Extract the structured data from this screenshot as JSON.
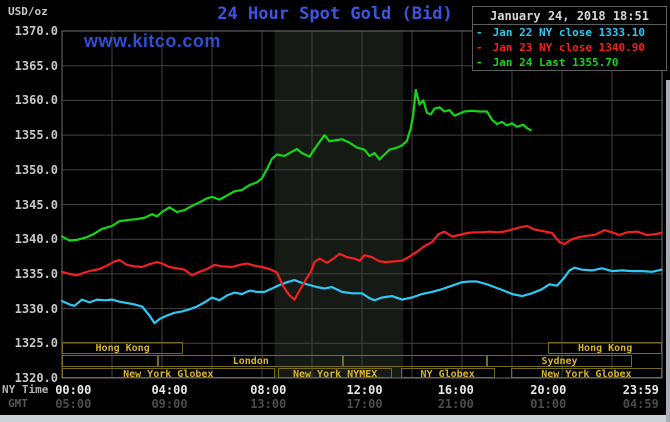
{
  "header": {
    "unit_label": "USD/oz",
    "title": "24 Hour Spot Gold (Bid)",
    "datetime": "January 24, 2018 18:51",
    "watermark": "www.kitco.com"
  },
  "legend": {
    "dash_glyph": "-",
    "items": [
      {
        "label": " Jan 22 NY close 1333.10",
        "color": "#2fc8f5"
      },
      {
        "label": " Jan 23 NY close 1340.90",
        "color": "#f22020"
      },
      {
        "label": " Jan 24 Last 1355.70",
        "color": "#17d417"
      }
    ]
  },
  "axes": {
    "ny_time_label": "NY Time",
    "gmt_label": "GMT",
    "y_tick_labels": [
      "1370.0",
      "1365.0",
      "1360.0",
      "1355.0",
      "1350.0",
      "1345.0",
      "1340.0",
      "1335.0",
      "1330.0",
      "1325.0",
      "1320.0"
    ],
    "x_ticks": [
      {
        "ny": "00:00",
        "gmt": "05:00",
        "hour": 0.45
      },
      {
        "ny": "04:00",
        "gmt": "09:00",
        "hour": 4.3
      },
      {
        "ny": "08:00",
        "gmt": "13:00",
        "hour": 8.25
      },
      {
        "ny": "12:00",
        "gmt": "17:00",
        "hour": 12.1
      },
      {
        "ny": "16:00",
        "gmt": "21:00",
        "hour": 15.75
      },
      {
        "ny": "20:00",
        "gmt": "01:00",
        "hour": 19.45
      },
      {
        "ny": "23:59",
        "gmt": "04:59",
        "hour": 23.15
      }
    ]
  },
  "sessions": {
    "border_color": "#756a1e",
    "text_color": "#d8b42c",
    "rows": [
      {
        "boxes": [
          {
            "label": "Hong Kong",
            "from": 0,
            "to": 4.85
          },
          {
            "label": "Hong Kong",
            "from": 19.45,
            "to": 24
          }
        ]
      },
      {
        "boxes": [
          {
            "label": "",
            "from": 0,
            "to": 3.85
          },
          {
            "label": "London",
            "from": 3.85,
            "to": 11.25
          },
          {
            "label": "",
            "from": 11.25,
            "to": 17.0
          },
          {
            "label": "Sydney",
            "from": 17.0,
            "to": 22.8
          }
        ]
      },
      {
        "boxes": [
          {
            "label": "New York Globex",
            "from": 0,
            "to": 8.5
          },
          {
            "label": "New York NYMEX",
            "from": 8.65,
            "to": 13.2
          },
          {
            "label": "NY Globex",
            "from": 13.55,
            "to": 17.3
          },
          {
            "label": "New York Globex",
            "from": 17.95,
            "to": 24
          }
        ]
      }
    ]
  },
  "chart_data": {
    "type": "line",
    "title": "24 Hour Spot Gold (Bid)",
    "xlabel": "NY Time (hours 00:00-23:59)",
    "ylabel": "USD/oz",
    "xlim": [
      0,
      24
    ],
    "ylim": [
      1320,
      1370
    ],
    "y_tick_step": 5,
    "x_gridline_step_hours": 2,
    "grid": true,
    "legend_position": "top-right",
    "nymex_highlight_band_hours": [
      8.5,
      13.65
    ],
    "highlight_band_color": "#151b14",
    "series": [
      {
        "name": "Jan 22",
        "close_label": "NY close 1333.10",
        "close_value": 1333.1,
        "color": "#2fc8f5",
        "points": [
          [
            0,
            1331.1
          ],
          [
            0.3,
            1330.6
          ],
          [
            0.5,
            1330.4
          ],
          [
            0.8,
            1331.3
          ],
          [
            1.1,
            1330.9
          ],
          [
            1.4,
            1331.3
          ],
          [
            1.7,
            1331.2
          ],
          [
            2.0,
            1331.3
          ],
          [
            2.3,
            1331.0
          ],
          [
            2.6,
            1330.8
          ],
          [
            2.9,
            1330.6
          ],
          [
            3.2,
            1330.3
          ],
          [
            3.5,
            1329.0
          ],
          [
            3.7,
            1327.9
          ],
          [
            3.9,
            1328.5
          ],
          [
            4.2,
            1329.0
          ],
          [
            4.5,
            1329.4
          ],
          [
            4.8,
            1329.6
          ],
          [
            5.1,
            1329.9
          ],
          [
            5.4,
            1330.3
          ],
          [
            5.7,
            1330.9
          ],
          [
            6.0,
            1331.6
          ],
          [
            6.3,
            1331.2
          ],
          [
            6.6,
            1331.9
          ],
          [
            6.9,
            1332.3
          ],
          [
            7.2,
            1332.1
          ],
          [
            7.5,
            1332.6
          ],
          [
            7.8,
            1332.4
          ],
          [
            8.1,
            1332.4
          ],
          [
            8.4,
            1332.9
          ],
          [
            8.7,
            1333.4
          ],
          [
            9.0,
            1333.8
          ],
          [
            9.3,
            1334.1
          ],
          [
            9.6,
            1333.7
          ],
          [
            9.9,
            1333.4
          ],
          [
            10.2,
            1333.1
          ],
          [
            10.5,
            1332.9
          ],
          [
            10.8,
            1333.1
          ],
          [
            11.2,
            1332.4
          ],
          [
            11.6,
            1332.2
          ],
          [
            12.0,
            1332.2
          ],
          [
            12.3,
            1331.5
          ],
          [
            12.5,
            1331.2
          ],
          [
            12.8,
            1331.6
          ],
          [
            13.2,
            1331.8
          ],
          [
            13.6,
            1331.3
          ],
          [
            14.0,
            1331.6
          ],
          [
            14.4,
            1332.1
          ],
          [
            14.8,
            1332.4
          ],
          [
            15.2,
            1332.8
          ],
          [
            15.6,
            1333.3
          ],
          [
            16.0,
            1333.8
          ],
          [
            16.3,
            1333.9
          ],
          [
            16.6,
            1333.9
          ],
          [
            17.0,
            1333.5
          ],
          [
            17.3,
            1333.1
          ],
          [
            17.6,
            1332.7
          ],
          [
            18.0,
            1332.1
          ],
          [
            18.4,
            1331.8
          ],
          [
            18.8,
            1332.2
          ],
          [
            19.2,
            1332.8
          ],
          [
            19.5,
            1333.5
          ],
          [
            19.8,
            1333.3
          ],
          [
            20.1,
            1334.5
          ],
          [
            20.3,
            1335.5
          ],
          [
            20.5,
            1335.9
          ],
          [
            20.8,
            1335.6
          ],
          [
            21.2,
            1335.5
          ],
          [
            21.6,
            1335.8
          ],
          [
            22.0,
            1335.4
          ],
          [
            22.4,
            1335.5
          ],
          [
            22.8,
            1335.4
          ],
          [
            23.2,
            1335.4
          ],
          [
            23.6,
            1335.3
          ],
          [
            23.98,
            1335.6
          ]
        ]
      },
      {
        "name": "Jan 23",
        "close_label": "NY close 1340.90",
        "close_value": 1340.9,
        "color": "#f22020",
        "points": [
          [
            0,
            1335.3
          ],
          [
            0.3,
            1335.0
          ],
          [
            0.6,
            1334.8
          ],
          [
            0.9,
            1335.2
          ],
          [
            1.2,
            1335.5
          ],
          [
            1.5,
            1335.7
          ],
          [
            1.8,
            1336.2
          ],
          [
            2.1,
            1336.8
          ],
          [
            2.3,
            1337.0
          ],
          [
            2.6,
            1336.3
          ],
          [
            2.9,
            1336.1
          ],
          [
            3.2,
            1336.0
          ],
          [
            3.5,
            1336.4
          ],
          [
            3.8,
            1336.7
          ],
          [
            4.0,
            1336.5
          ],
          [
            4.3,
            1336.0
          ],
          [
            4.6,
            1335.8
          ],
          [
            4.9,
            1335.6
          ],
          [
            5.2,
            1334.8
          ],
          [
            5.5,
            1335.3
          ],
          [
            5.8,
            1335.7
          ],
          [
            6.1,
            1336.3
          ],
          [
            6.4,
            1336.1
          ],
          [
            6.8,
            1336.0
          ],
          [
            7.1,
            1336.3
          ],
          [
            7.4,
            1336.5
          ],
          [
            7.7,
            1336.2
          ],
          [
            8.0,
            1336.0
          ],
          [
            8.3,
            1335.7
          ],
          [
            8.6,
            1335.2
          ],
          [
            8.85,
            1333.2
          ],
          [
            9.1,
            1331.9
          ],
          [
            9.3,
            1331.3
          ],
          [
            9.5,
            1332.6
          ],
          [
            9.75,
            1334.2
          ],
          [
            9.95,
            1335.3
          ],
          [
            10.1,
            1336.7
          ],
          [
            10.3,
            1337.2
          ],
          [
            10.6,
            1336.6
          ],
          [
            10.9,
            1337.3
          ],
          [
            11.1,
            1337.9
          ],
          [
            11.4,
            1337.4
          ],
          [
            11.7,
            1337.2
          ],
          [
            11.9,
            1336.9
          ],
          [
            12.1,
            1337.7
          ],
          [
            12.4,
            1337.4
          ],
          [
            12.7,
            1336.8
          ],
          [
            13.0,
            1336.7
          ],
          [
            13.3,
            1336.8
          ],
          [
            13.6,
            1336.9
          ],
          [
            13.9,
            1337.5
          ],
          [
            14.2,
            1338.2
          ],
          [
            14.5,
            1339.0
          ],
          [
            14.8,
            1339.6
          ],
          [
            15.05,
            1340.7
          ],
          [
            15.3,
            1341.1
          ],
          [
            15.6,
            1340.4
          ],
          [
            15.9,
            1340.6
          ],
          [
            16.2,
            1340.9
          ],
          [
            16.5,
            1341.0
          ],
          [
            16.8,
            1341.0
          ],
          [
            17.1,
            1341.1
          ],
          [
            17.4,
            1341.0
          ],
          [
            17.7,
            1341.1
          ],
          [
            18.0,
            1341.4
          ],
          [
            18.3,
            1341.7
          ],
          [
            18.6,
            1341.9
          ],
          [
            18.9,
            1341.4
          ],
          [
            19.2,
            1341.2
          ],
          [
            19.6,
            1340.9
          ],
          [
            19.9,
            1339.6
          ],
          [
            20.1,
            1339.3
          ],
          [
            20.4,
            1340.0
          ],
          [
            20.7,
            1340.3
          ],
          [
            21.0,
            1340.5
          ],
          [
            21.3,
            1340.6
          ],
          [
            21.7,
            1341.3
          ],
          [
            22.0,
            1341.0
          ],
          [
            22.3,
            1340.6
          ],
          [
            22.6,
            1341.0
          ],
          [
            23.0,
            1341.1
          ],
          [
            23.4,
            1340.6
          ],
          [
            23.7,
            1340.7
          ],
          [
            23.98,
            1340.9
          ]
        ]
      },
      {
        "name": "Jan 24",
        "close_label": "Last 1355.70",
        "close_value": 1355.7,
        "color": "#17d417",
        "points": [
          [
            0,
            1340.4
          ],
          [
            0.3,
            1339.8
          ],
          [
            0.6,
            1339.9
          ],
          [
            1.0,
            1340.3
          ],
          [
            1.3,
            1340.8
          ],
          [
            1.6,
            1341.5
          ],
          [
            2.0,
            1341.9
          ],
          [
            2.3,
            1342.6
          ],
          [
            2.7,
            1342.8
          ],
          [
            3.0,
            1342.9
          ],
          [
            3.3,
            1343.1
          ],
          [
            3.6,
            1343.6
          ],
          [
            3.8,
            1343.3
          ],
          [
            4.0,
            1343.9
          ],
          [
            4.3,
            1344.6
          ],
          [
            4.6,
            1343.9
          ],
          [
            4.9,
            1344.2
          ],
          [
            5.2,
            1344.8
          ],
          [
            5.5,
            1345.3
          ],
          [
            5.8,
            1345.9
          ],
          [
            6.0,
            1346.1
          ],
          [
            6.3,
            1345.7
          ],
          [
            6.6,
            1346.3
          ],
          [
            6.9,
            1346.9
          ],
          [
            7.2,
            1347.1
          ],
          [
            7.5,
            1347.8
          ],
          [
            7.8,
            1348.2
          ],
          [
            8.0,
            1348.8
          ],
          [
            8.2,
            1350.1
          ],
          [
            8.4,
            1351.6
          ],
          [
            8.6,
            1352.2
          ],
          [
            8.9,
            1352.0
          ],
          [
            9.1,
            1352.4
          ],
          [
            9.4,
            1353.0
          ],
          [
            9.6,
            1352.4
          ],
          [
            9.9,
            1351.9
          ],
          [
            10.1,
            1353.0
          ],
          [
            10.3,
            1354.0
          ],
          [
            10.5,
            1355.0
          ],
          [
            10.7,
            1354.1
          ],
          [
            11.0,
            1354.3
          ],
          [
            11.2,
            1354.4
          ],
          [
            11.5,
            1353.9
          ],
          [
            11.8,
            1353.2
          ],
          [
            12.1,
            1352.9
          ],
          [
            12.3,
            1352.0
          ],
          [
            12.5,
            1352.4
          ],
          [
            12.7,
            1351.5
          ],
          [
            12.9,
            1352.2
          ],
          [
            13.1,
            1352.9
          ],
          [
            13.4,
            1353.2
          ],
          [
            13.6,
            1353.5
          ],
          [
            13.8,
            1354.2
          ],
          [
            13.95,
            1356.0
          ],
          [
            14.05,
            1358.0
          ],
          [
            14.15,
            1361.5
          ],
          [
            14.3,
            1359.4
          ],
          [
            14.45,
            1360.0
          ],
          [
            14.6,
            1358.2
          ],
          [
            14.75,
            1358.0
          ],
          [
            14.9,
            1358.8
          ],
          [
            15.1,
            1359.0
          ],
          [
            15.3,
            1358.4
          ],
          [
            15.5,
            1358.6
          ],
          [
            15.7,
            1357.8
          ],
          [
            15.9,
            1358.1
          ],
          [
            16.1,
            1358.4
          ],
          [
            16.4,
            1358.5
          ],
          [
            16.7,
            1358.4
          ],
          [
            17.0,
            1358.4
          ],
          [
            17.2,
            1357.2
          ],
          [
            17.4,
            1356.6
          ],
          [
            17.6,
            1356.9
          ],
          [
            17.8,
            1356.4
          ],
          [
            18.0,
            1356.7
          ],
          [
            18.2,
            1356.2
          ],
          [
            18.45,
            1356.5
          ],
          [
            18.6,
            1356.0
          ],
          [
            18.75,
            1355.7
          ]
        ]
      }
    ]
  }
}
